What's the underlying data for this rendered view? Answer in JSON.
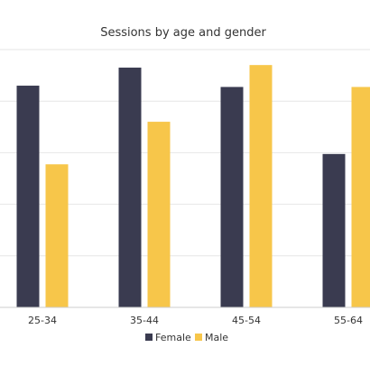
{
  "chart_data": {
    "type": "bar",
    "title": "Sessions by age and gender",
    "categories": [
      "25-34",
      "35-44",
      "45-54",
      "55-64"
    ],
    "series": [
      {
        "name": "Female",
        "color": "#3a3b50",
        "values": [
          0.86,
          0.93,
          0.855,
          0.595
        ]
      },
      {
        "name": "Male",
        "color": "#f7c64a",
        "values": [
          0.555,
          0.72,
          0.94,
          0.855
        ]
      }
    ],
    "ylim": [
      0,
      1
    ],
    "grid": true,
    "y_tick_labels_visible": false,
    "legend_placement": "bottom-center"
  }
}
